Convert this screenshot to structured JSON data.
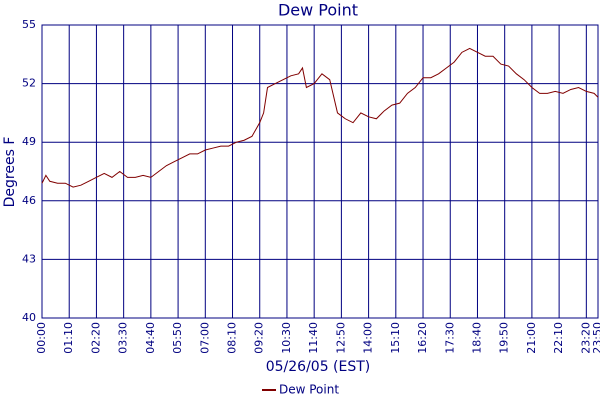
{
  "chart_data": {
    "type": "line",
    "title": "Dew Point",
    "y_label": "Degrees F",
    "x_label": "05/26/05 (EST)",
    "x": [
      0,
      10,
      20,
      40,
      60,
      80,
      100,
      120,
      140,
      160,
      180,
      200,
      220,
      240,
      260,
      280,
      300,
      320,
      340,
      360,
      380,
      400,
      420,
      440,
      460,
      480,
      500,
      520,
      540,
      560,
      570,
      580,
      600,
      620,
      640,
      660,
      670,
      680,
      700,
      720,
      740,
      760,
      780,
      800,
      820,
      840,
      860,
      880,
      900,
      920,
      940,
      960,
      980,
      1000,
      1020,
      1040,
      1060,
      1080,
      1100,
      1120,
      1140,
      1160,
      1180,
      1200,
      1220,
      1240,
      1260,
      1280,
      1300,
      1320,
      1340,
      1360,
      1380,
      1400,
      1420,
      1430
    ],
    "series": [
      {
        "name": "Dew Point",
        "color": "#800000",
        "values": [
          46.9,
          47.3,
          47.0,
          46.9,
          46.9,
          46.7,
          46.8,
          47.0,
          47.2,
          47.4,
          47.2,
          47.5,
          47.2,
          47.2,
          47.3,
          47.2,
          47.5,
          47.8,
          48.0,
          48.2,
          48.4,
          48.4,
          48.6,
          48.7,
          48.8,
          48.8,
          49.0,
          49.1,
          49.3,
          50.0,
          50.5,
          51.8,
          52.0,
          52.2,
          52.4,
          52.5,
          52.8,
          51.8,
          52.0,
          52.5,
          52.2,
          50.5,
          50.2,
          50.0,
          50.5,
          50.3,
          50.2,
          50.6,
          50.9,
          51.0,
          51.5,
          51.8,
          52.3,
          52.3,
          52.5,
          52.8,
          53.1,
          53.6,
          53.8,
          53.6,
          53.4,
          53.4,
          53.0,
          52.9,
          52.5,
          52.2,
          51.8,
          51.5,
          51.5,
          51.6,
          51.5,
          51.7,
          51.8,
          51.6,
          51.5,
          51.3
        ]
      }
    ],
    "xlim": [
      0,
      1430
    ],
    "xticks": [
      {
        "value": 0,
        "label": "00:00"
      },
      {
        "value": 70,
        "label": "01:10"
      },
      {
        "value": 140,
        "label": "02:20"
      },
      {
        "value": 210,
        "label": "03:30"
      },
      {
        "value": 280,
        "label": "04:40"
      },
      {
        "value": 350,
        "label": "05:50"
      },
      {
        "value": 420,
        "label": "07:00"
      },
      {
        "value": 490,
        "label": "08:10"
      },
      {
        "value": 560,
        "label": "09:20"
      },
      {
        "value": 630,
        "label": "10:30"
      },
      {
        "value": 700,
        "label": "11:40"
      },
      {
        "value": 770,
        "label": "12:50"
      },
      {
        "value": 840,
        "label": "14:00"
      },
      {
        "value": 910,
        "label": "15:10"
      },
      {
        "value": 980,
        "label": "16:20"
      },
      {
        "value": 1050,
        "label": "17:30"
      },
      {
        "value": 1120,
        "label": "18:40"
      },
      {
        "value": 1190,
        "label": "19:50"
      },
      {
        "value": 1260,
        "label": "21:00"
      },
      {
        "value": 1330,
        "label": "22:10"
      },
      {
        "value": 1400,
        "label": "23:20"
      },
      {
        "value": 1430,
        "label": "23:50"
      }
    ],
    "ylim": [
      40,
      55
    ],
    "yticks": [
      40,
      43,
      46,
      49,
      52,
      55
    ],
    "grid": true,
    "grid_color": "#000080",
    "text_color": "#000080"
  }
}
